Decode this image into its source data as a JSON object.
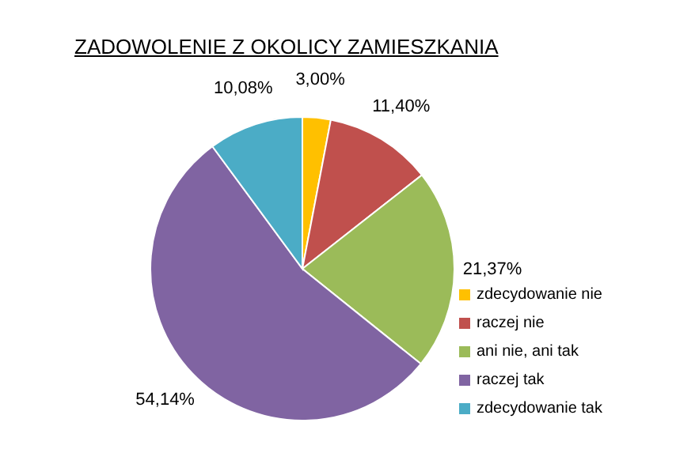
{
  "chart_data": {
    "type": "pie",
    "title": "ZADOWOLENIE Z OKOLICY ZAMIESZKANIA",
    "categories": [
      "zdecydowanie nie",
      "raczej nie",
      "ani nie, ani tak",
      "raczej tak",
      "zdecydowanie tak"
    ],
    "values": [
      3.0,
      11.4,
      21.37,
      54.14,
      10.08
    ],
    "colors": [
      "#ffc000",
      "#c0504d",
      "#9bbb59",
      "#8064a2",
      "#4bacc6"
    ],
    "value_labels": [
      "3,00%",
      "11,40%",
      "21,37%",
      "54,14%",
      "10,08%"
    ],
    "legend": "right"
  }
}
